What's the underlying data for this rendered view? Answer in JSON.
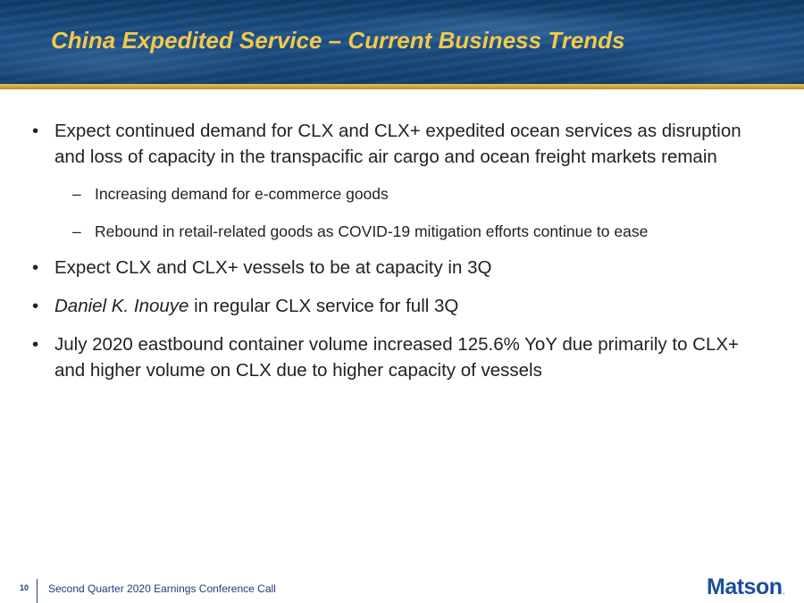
{
  "slide": {
    "title": "China Expedited Service – Current Business Trends"
  },
  "bullets": [
    {
      "marker": "•",
      "text": "Expect continued demand for CLX and CLX+ expedited ocean services as disruption and loss of capacity in the transpacific air cargo and ocean freight markets remain"
    },
    {
      "marker": "•",
      "text": "Expect CLX and CLX+ vessels to be at capacity in 3Q"
    },
    {
      "marker": "•",
      "italic_part": "Daniel K. Inouye",
      "text": " in regular CLX service for full 3Q"
    },
    {
      "marker": "•",
      "text": "July 2020 eastbound container volume increased 125.6% YoY due primarily to CLX+ and higher volume on CLX due to higher capacity of vessels"
    }
  ],
  "sub_bullets": [
    {
      "marker": "–",
      "text": "Increasing demand for e-commerce goods"
    },
    {
      "marker": "–",
      "text": "Rebound in retail-related goods as COVID-19 mitigation efforts continue to ease"
    }
  ],
  "footer": {
    "page_number": "10",
    "text": "Second Quarter 2020 Earnings Conference Call",
    "logo": "Matson",
    "logo_mark": "."
  },
  "colors": {
    "title": "#f2c84b",
    "header_band": "#1d5289",
    "header_stripe": "#d1a93a",
    "footer_text": "#1f3c73",
    "logo": "#1d4f9c"
  }
}
